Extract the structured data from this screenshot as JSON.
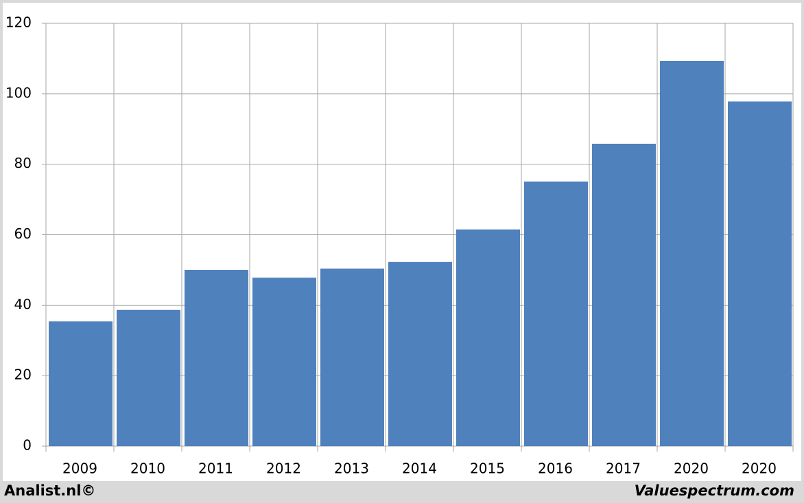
{
  "chart_data": {
    "type": "bar",
    "categories": [
      "2009",
      "2010",
      "2011",
      "2012",
      "2013",
      "2014",
      "2015",
      "2016",
      "2017",
      "2020",
      "2020"
    ],
    "values": [
      35.4,
      38.7,
      50.0,
      47.8,
      50.4,
      52.3,
      61.5,
      75.1,
      85.8,
      109.3,
      97.8
    ],
    "color": "#4f81bd",
    "ylim": [
      0,
      120
    ],
    "yticks": [
      0,
      20,
      40,
      60,
      80,
      100,
      120
    ],
    "grid": true
  },
  "footer": {
    "left": "Analist.nl©",
    "right": "Valuespectrum.com"
  }
}
